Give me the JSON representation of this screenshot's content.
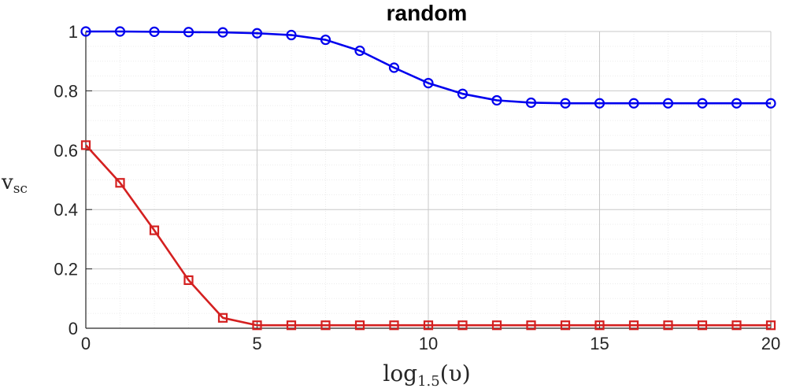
{
  "chart_data": {
    "type": "line",
    "title": "random",
    "xlabel": "log1.5(υ)",
    "ylabel": "vsc",
    "xlabel_parts": {
      "base": "log",
      "sub": "1.5",
      "arg": "(υ)"
    },
    "ylabel_parts": {
      "base": "v",
      "sub": "sc"
    },
    "xlim": [
      0,
      20
    ],
    "ylim": [
      0,
      1
    ],
    "x_ticks": [
      0,
      5,
      10,
      15,
      20
    ],
    "y_ticks": [
      0,
      0.2,
      0.4,
      0.6,
      0.8,
      1
    ],
    "x_tick_labels": [
      "0",
      "5",
      "10",
      "15",
      "20"
    ],
    "y_tick_labels": [
      "0",
      "0.2",
      "0.4",
      "0.6",
      "0.8",
      "1"
    ],
    "grid": true,
    "minor_grid": true,
    "x": [
      0,
      1,
      2,
      3,
      4,
      5,
      6,
      7,
      8,
      9,
      10,
      11,
      12,
      13,
      14,
      15,
      16,
      17,
      18,
      19,
      20
    ],
    "series": [
      {
        "marker": "circle",
        "color": "#0000ee",
        "values": [
          1.0,
          1.0,
          0.999,
          0.998,
          0.997,
          0.994,
          0.988,
          0.972,
          0.935,
          0.878,
          0.826,
          0.79,
          0.768,
          0.76,
          0.758,
          0.758,
          0.758,
          0.758,
          0.758,
          0.758,
          0.758
        ]
      },
      {
        "marker": "square",
        "color": "#d42020",
        "values": [
          0.617,
          0.49,
          0.33,
          0.162,
          0.035,
          0.01,
          0.01,
          0.01,
          0.01,
          0.01,
          0.01,
          0.01,
          0.01,
          0.01,
          0.01,
          0.01,
          0.01,
          0.01,
          0.01,
          0.01,
          0.01
        ]
      }
    ]
  }
}
